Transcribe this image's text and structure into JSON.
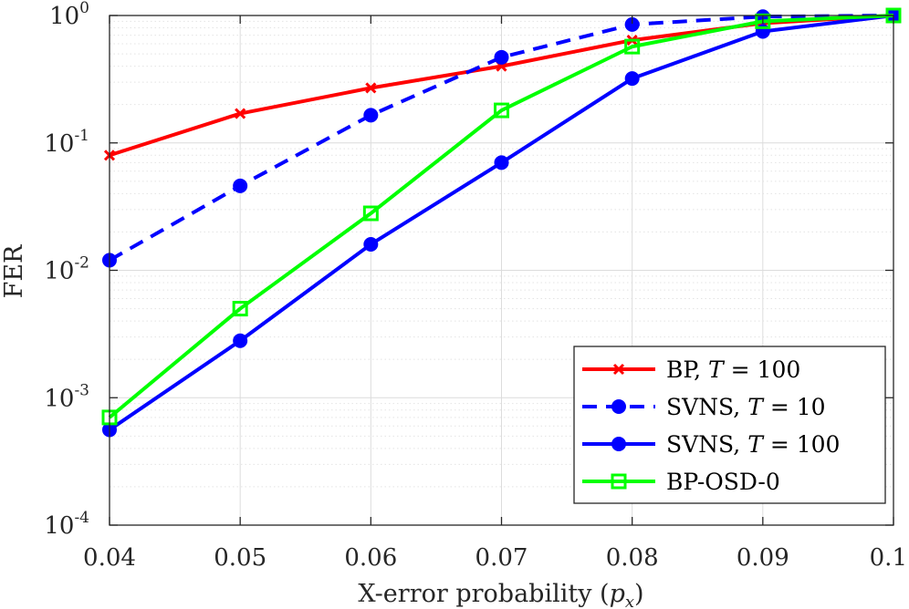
{
  "chart_data": {
    "type": "line",
    "yscale": "log",
    "xlabel_prefix": "X-error probability (",
    "xlabel_var": "p",
    "xlabel_sub": "x",
    "xlabel_suffix": ")",
    "ylabel": "FER",
    "xlim": [
      0.04,
      0.1
    ],
    "ylim": [
      0.0001,
      1
    ],
    "xticks": [
      0.04,
      0.05,
      0.06,
      0.07,
      0.08,
      0.09,
      0.1
    ],
    "xtick_labels": [
      "0.04",
      "0.05",
      "0.06",
      "0.07",
      "0.08",
      "0.09",
      "0.1"
    ],
    "yticks": [
      {
        "value": 1,
        "base": "10",
        "exp": "0"
      },
      {
        "value": 0.1,
        "base": "10",
        "exp": "-1"
      },
      {
        "value": 0.01,
        "base": "10",
        "exp": "-2"
      },
      {
        "value": 0.001,
        "base": "10",
        "exp": "-3"
      },
      {
        "value": 0.0001,
        "base": "10",
        "exp": "-4"
      }
    ],
    "grid": true,
    "legend_position": "bottom-right",
    "x": [
      0.04,
      0.05,
      0.06,
      0.07,
      0.08,
      0.09,
      0.1
    ],
    "series": [
      {
        "name": "BP",
        "label_prefix": "BP, ",
        "label_var": "T",
        "label_value": " = 100",
        "color": "#ff0000",
        "dash": "solid",
        "marker": "x",
        "values": [
          0.08,
          0.17,
          0.27,
          0.4,
          0.64,
          0.87,
          1.0
        ]
      },
      {
        "name": "SVNS T=10",
        "label_prefix": "SVNS, ",
        "label_var": "T",
        "label_value": " = 10",
        "color": "#0000ff",
        "dash": "dashed",
        "marker": "circle",
        "values": [
          0.012,
          0.046,
          0.165,
          0.47,
          0.85,
          0.98,
          1.0
        ]
      },
      {
        "name": "SVNS T=100",
        "label_prefix": "SVNS, ",
        "label_var": "T",
        "label_value": " = 100",
        "color": "#0000ff",
        "dash": "solid",
        "marker": "circle",
        "values": [
          0.00056,
          0.0028,
          0.016,
          0.07,
          0.32,
          0.75,
          1.0
        ]
      },
      {
        "name": "BP-OSD-0",
        "label_prefix": "BP-OSD-0",
        "label_var": "",
        "label_value": "",
        "color": "#00ff00",
        "dash": "solid",
        "marker": "square",
        "values": [
          0.0007,
          0.005,
          0.028,
          0.18,
          0.57,
          0.9,
          1.0
        ]
      }
    ]
  }
}
